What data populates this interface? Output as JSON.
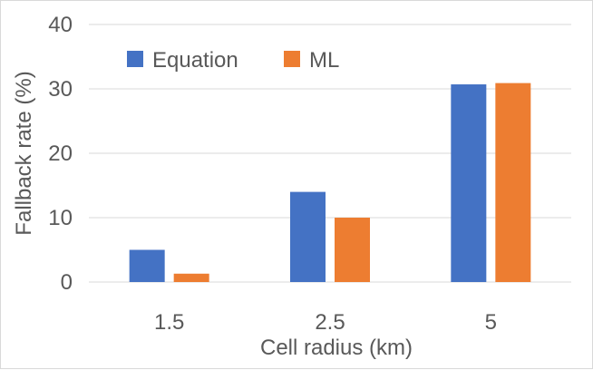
{
  "chart_data": {
    "type": "bar",
    "categories": [
      "1.5",
      "2.5",
      "5"
    ],
    "series": [
      {
        "name": "Equation",
        "color": "#4472c4",
        "values": [
          5.0,
          14.0,
          30.7
        ]
      },
      {
        "name": "ML",
        "color": "#ed7d31",
        "values": [
          1.3,
          10.0,
          30.9
        ]
      }
    ],
    "xlabel": "Cell radius (km)",
    "ylabel": "Fallback rate (%)",
    "ylim": [
      0,
      40
    ],
    "yticks": [
      "0",
      "10",
      "20",
      "30",
      "40"
    ],
    "grid": true,
    "legend_position": "top-left"
  }
}
